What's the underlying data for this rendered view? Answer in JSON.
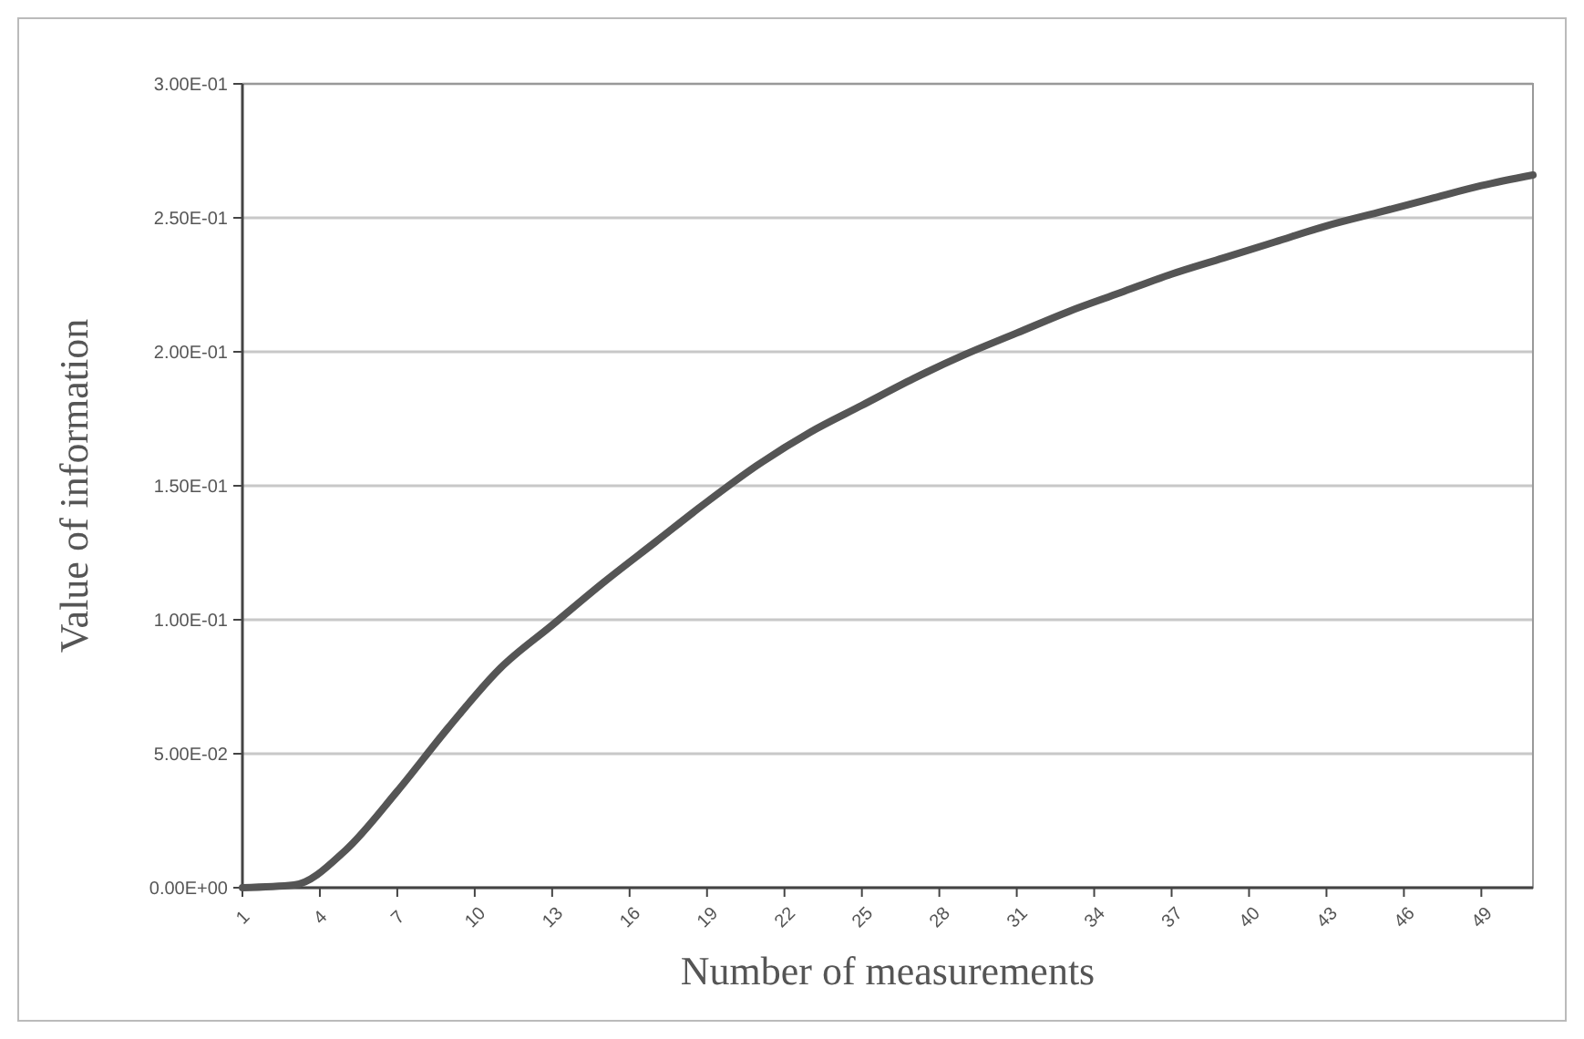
{
  "chart_data": {
    "type": "line",
    "xlabel": "Number of measurements",
    "ylabel": "Value of information",
    "x": [
      1,
      3,
      5,
      7,
      9,
      11,
      13,
      15,
      17,
      19,
      21,
      23,
      25,
      27,
      29,
      31,
      33,
      35,
      37,
      39,
      41,
      43,
      45,
      47,
      49,
      51
    ],
    "series": [
      {
        "color": "#555555",
        "values": [
          0,
          0.001,
          0.014,
          0.036,
          0.06,
          0.082,
          0.098,
          0.114,
          0.129,
          0.144,
          0.158,
          0.17,
          0.18,
          0.19,
          0.199,
          0.207,
          0.215,
          0.222,
          0.229,
          0.235,
          0.241,
          0.247,
          0.252,
          0.257,
          0.262,
          0.266
        ]
      }
    ],
    "xlim": [
      1,
      51
    ],
    "xticks": [
      1,
      4,
      7,
      10,
      13,
      16,
      19,
      22,
      25,
      28,
      31,
      34,
      37,
      40,
      43,
      46,
      49
    ],
    "ylim": [
      0,
      0.3
    ],
    "yticks": [
      {
        "value": 0,
        "label": "0.00E+00"
      },
      {
        "value": 0.05,
        "label": "5.00E-02"
      },
      {
        "value": 0.1,
        "label": "1.00E-01"
      },
      {
        "value": 0.15,
        "label": "1.50E-01"
      },
      {
        "value": 0.2,
        "label": "2.00E-01"
      },
      {
        "value": 0.25,
        "label": "2.50E-01"
      },
      {
        "value": 0.3,
        "label": "3.00E-01"
      }
    ],
    "grid": "y",
    "marker": "none",
    "line_style": "solid"
  }
}
